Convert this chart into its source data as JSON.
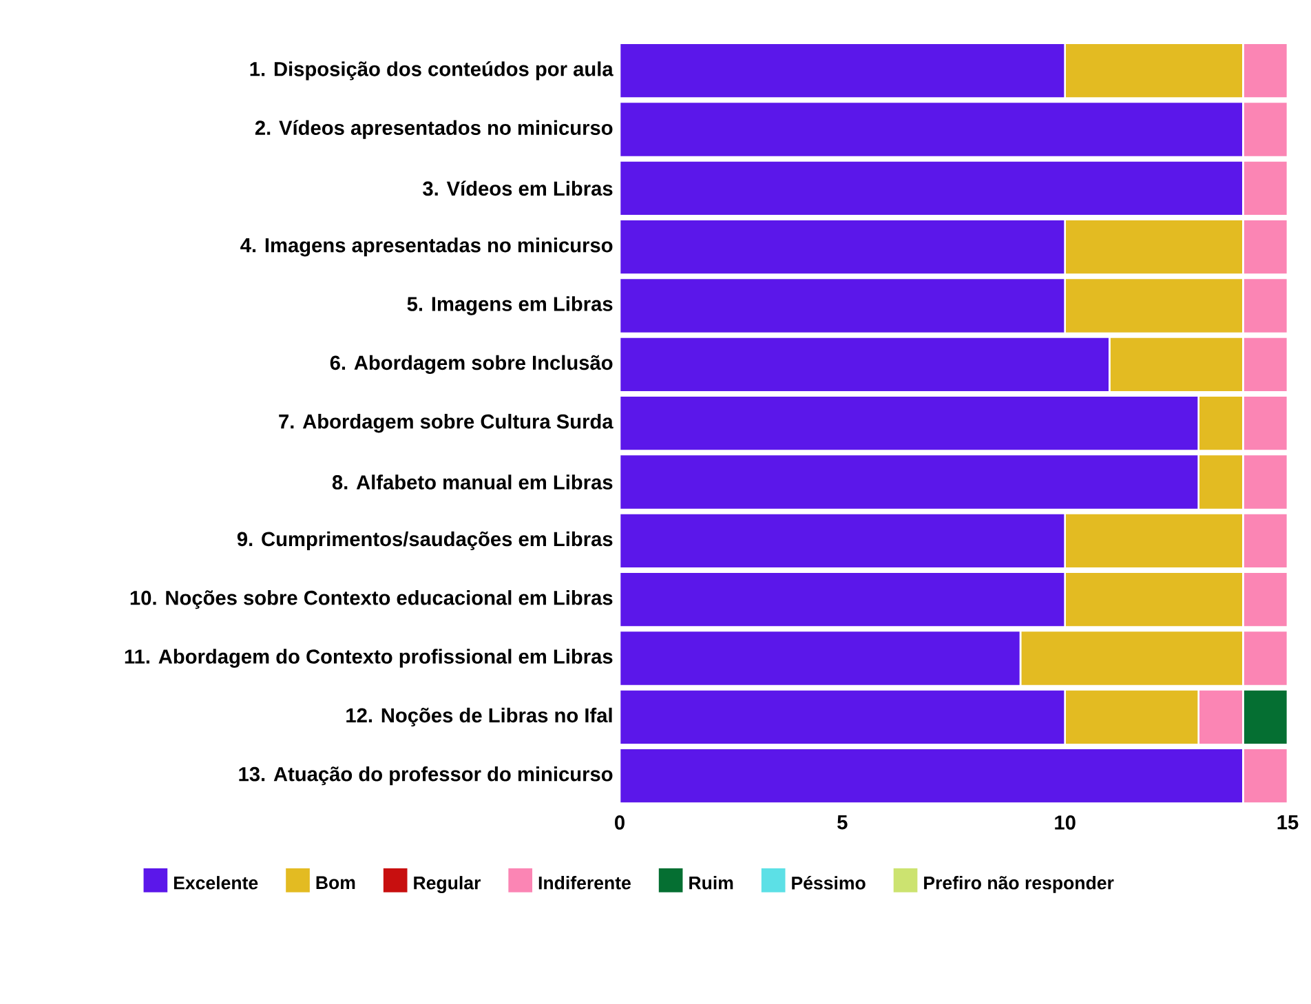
{
  "chart_data": {
    "type": "bar",
    "orientation": "horizontal",
    "stacked": true,
    "legend": "bottom",
    "categories": [
      "1. Disposição dos conteúdos por aula",
      "2. Vídeos apresentados no minicurso",
      "3. Vídeos em Libras",
      "4. Imagens apresentadas no minicurso",
      "5. Imagens em Libras",
      "6. Abordagem sobre Inclusão",
      "7. Abordagem sobre Cultura Surda",
      "8. Alfabeto manual em Libras",
      "9. Cumprimentos/saudações em Libras",
      "10. Noções sobre Contexto educacional em Libras",
      "11. Abordagem do Contexto profissional em Libras",
      "12. Noções de Libras no Ifal",
      "13. Atuação do professor do minicurso"
    ],
    "xlim": [
      0,
      15
    ],
    "xticks": [
      0,
      5,
      10,
      15
    ],
    "series": [
      {
        "name": "Excelente",
        "color": "#5b17ea",
        "values": [
          10,
          14,
          14,
          10,
          10,
          11,
          13,
          13,
          10,
          10,
          9,
          10,
          14
        ]
      },
      {
        "name": "Bom",
        "color": "#e3bb22",
        "values": [
          4,
          0,
          0,
          4,
          4,
          3,
          1,
          1,
          4,
          4,
          5,
          3,
          0
        ]
      },
      {
        "name": "Regular",
        "color": "#c80f0f",
        "values": [
          0,
          0,
          0,
          0,
          0,
          0,
          0,
          0,
          0,
          0,
          0,
          0,
          0
        ]
      },
      {
        "name": "Indiferente",
        "color": "#fb85b4",
        "values": [
          1,
          1,
          1,
          1,
          1,
          1,
          1,
          1,
          1,
          1,
          1,
          1,
          1
        ]
      },
      {
        "name": "Ruim",
        "color": "#056f32",
        "values": [
          0,
          0,
          0,
          0,
          0,
          0,
          0,
          0,
          0,
          0,
          0,
          1,
          0
        ]
      },
      {
        "name": "Péssimo",
        "color": "#5ce0e6",
        "values": [
          0,
          0,
          0,
          0,
          0,
          0,
          0,
          0,
          0,
          0,
          0,
          0,
          0
        ]
      },
      {
        "name": "Prefiro não responder",
        "color": "#cce370",
        "values": [
          0,
          0,
          0,
          0,
          0,
          0,
          0,
          0,
          0,
          0,
          0,
          0,
          0
        ]
      }
    ]
  }
}
